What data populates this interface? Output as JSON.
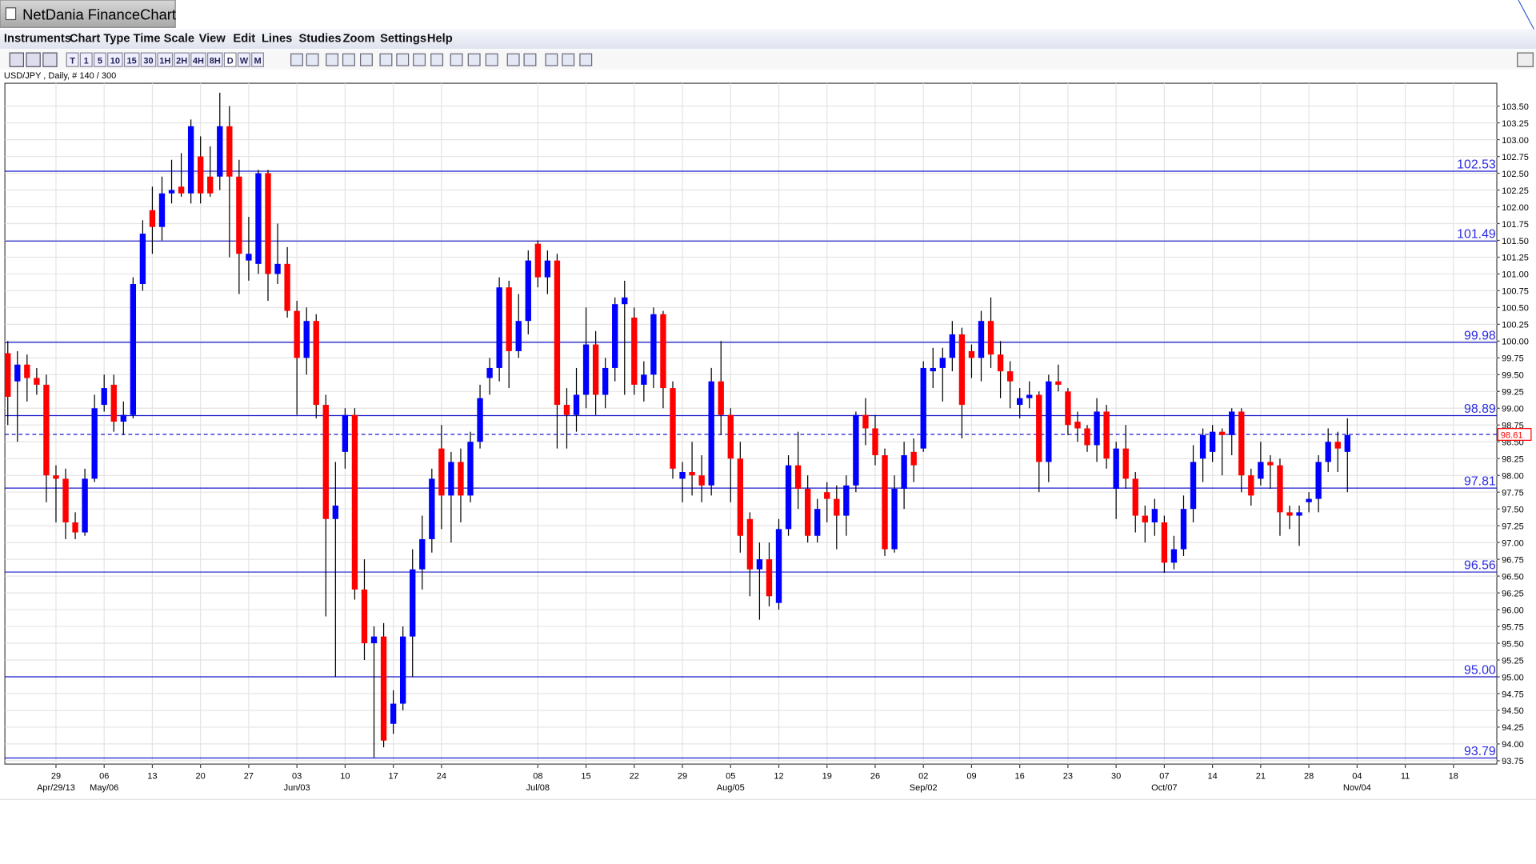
{
  "app": {
    "title": "NetDania FinanceChart",
    "menu": [
      "Instruments",
      "Chart Type",
      "Time Scale",
      "View",
      "Edit",
      "Lines",
      "Studies",
      "Zoom",
      "Settings",
      "Help"
    ],
    "toolbar": [
      "T",
      "1",
      "5",
      "10",
      "15",
      "30",
      "1H",
      "2H",
      "4H",
      "8H",
      "D",
      "W",
      "M"
    ]
  },
  "chart_data": {
    "type": "candlestick",
    "subtitle": "USD/JPY , Daily, # 140 / 300",
    "up_color": "#0000ff",
    "down_color": "#ff0000",
    "grid": true,
    "xlim": [
      -0.3,
      154.5
    ],
    "ylim": [
      93.7,
      103.84
    ],
    "xticks": [
      {
        "value": 5,
        "label": "29"
      },
      {
        "value": 10,
        "label": "06"
      },
      {
        "value": 15,
        "label": "13"
      },
      {
        "value": 20,
        "label": "20"
      },
      {
        "value": 25,
        "label": "27"
      },
      {
        "value": 30,
        "label": "03"
      },
      {
        "value": 35,
        "label": "10"
      },
      {
        "value": 40,
        "label": "17"
      },
      {
        "value": 45,
        "label": "24"
      },
      {
        "value": 55,
        "label": "08"
      },
      {
        "value": 60,
        "label": "15"
      },
      {
        "value": 65,
        "label": "22"
      },
      {
        "value": 70,
        "label": "29"
      },
      {
        "value": 75,
        "label": "05"
      },
      {
        "value": 80,
        "label": "12"
      },
      {
        "value": 85,
        "label": "19"
      },
      {
        "value": 90,
        "label": "26"
      },
      {
        "value": 95,
        "label": "02"
      },
      {
        "value": 100,
        "label": "09"
      },
      {
        "value": 105,
        "label": "16"
      },
      {
        "value": 110,
        "label": "23"
      },
      {
        "value": 115,
        "label": "30"
      },
      {
        "value": 120,
        "label": "07"
      },
      {
        "value": 125,
        "label": "14"
      },
      {
        "value": 130,
        "label": "21"
      },
      {
        "value": 135,
        "label": "28"
      },
      {
        "value": 140,
        "label": "04"
      },
      {
        "value": 145,
        "label": "11"
      },
      {
        "value": 150,
        "label": "18"
      }
    ],
    "xsubticks": [
      {
        "value": 5,
        "label": "Apr/29/13"
      },
      {
        "value": 10,
        "label": "May/06"
      },
      {
        "value": 30,
        "label": "Jun/03"
      },
      {
        "value": 55,
        "label": "Jul/08"
      },
      {
        "value": 75,
        "label": "Aug/05"
      },
      {
        "value": 95,
        "label": "Sep/02"
      },
      {
        "value": 120,
        "label": "Oct/07"
      },
      {
        "value": 140,
        "label": "Nov/04"
      }
    ],
    "yticks": [
      93.75,
      {
        "value": 94,
        "label": "94.00"
      },
      94.25,
      {
        "value": 94.5,
        "label": "94.50"
      },
      94.75,
      {
        "value": 95,
        "label": "95.00"
      },
      95.25,
      {
        "value": 95.5,
        "label": "95.50"
      },
      95.75,
      {
        "value": 96,
        "label": "96.00"
      },
      96.25,
      {
        "value": 96.5,
        "label": "96.50"
      },
      96.75,
      {
        "value": 97,
        "label": "97.00"
      },
      97.25,
      {
        "value": 97.5,
        "label": "97.50"
      },
      97.75,
      {
        "value": 98,
        "label": "98.00"
      },
      98.25,
      {
        "value": 98.5,
        "label": "98.50"
      },
      98.75,
      {
        "value": 99,
        "label": "99.00"
      },
      99.25,
      {
        "value": 99.5,
        "label": "99.50"
      },
      99.75,
      {
        "value": 100,
        "label": "100.00"
      },
      100.25,
      {
        "value": 100.5,
        "label": "100.50"
      },
      100.75,
      {
        "value": 101,
        "label": "101.00"
      },
      101.25,
      {
        "value": 101.5,
        "label": "101.50"
      },
      101.75,
      {
        "value": 102,
        "label": "102.00"
      },
      102.25,
      {
        "value": 102.5,
        "label": "102.50"
      },
      102.75,
      {
        "value": 103,
        "label": "103.00"
      },
      103.25,
      {
        "value": 103.5,
        "label": "103.50"
      }
    ],
    "levels": [
      102.53,
      101.49,
      99.98,
      98.89,
      97.81,
      96.56,
      {
        "value": 95,
        "label": "95.00"
      },
      93.79
    ],
    "last_price": 98.61,
    "open": [
      99.82,
      99.4,
      99.65,
      99.45,
      99.35,
      98.0,
      97.95,
      97.3,
      97.15,
      97.95,
      99.05,
      99.35,
      98.8,
      98.9,
      100.85,
      101.95,
      101.7,
      102.2,
      102.3,
      102.2,
      102.75,
      102.45,
      102.45,
      103.2,
      102.45,
      101.2,
      101.15,
      102.5,
      101.0,
      101.15,
      100.45,
      99.75,
      100.3,
      99.05,
      97.35,
      98.35,
      98.9,
      96.3,
      95.5,
      95.6,
      94.3,
      94.6,
      95.6,
      96.6,
      97.05,
      98.4,
      97.7,
      98.2,
      97.7,
      98.5,
      99.45,
      99.6,
      100.8,
      99.85,
      100.3,
      101.45,
      100.95,
      101.2,
      99.05,
      98.9,
      99.2,
      99.95,
      99.2,
      99.6,
      100.55,
      100.35,
      99.35,
      99.5,
      100.4,
      99.3,
      97.95,
      98.05,
      98.0,
      97.85,
      99.4,
      98.9,
      98.25,
      97.35,
      96.6,
      96.75,
      96.1,
      97.2,
      98.15,
      97.8,
      97.1,
      97.75,
      97.65,
      97.4,
      97.85,
      98.9,
      98.7,
      98.3,
      96.9,
      97.8,
      98.35,
      98.4,
      99.55,
      99.6,
      99.75,
      100.1,
      99.85,
      99.75,
      100.3,
      99.8,
      99.55,
      99.05,
      99.15,
      99.2,
      98.2,
      99.4,
      99.25,
      98.8,
      98.7,
      98.45,
      98.95,
      97.8,
      98.4,
      97.95,
      97.4,
      97.3,
      97.3,
      96.7,
      96.9,
      97.5,
      98.25,
      98.35,
      98.65,
      98.6,
      98.95,
      98.0,
      97.95,
      98.2,
      98.15,
      97.45,
      97.4,
      97.6,
      97.65,
      98.2,
      98.5,
      98.35
    ],
    "high": [
      100.0,
      99.85,
      99.8,
      99.6,
      99.5,
      98.15,
      98.1,
      97.45,
      98.1,
      99.2,
      99.5,
      99.5,
      99.1,
      100.95,
      101.8,
      102.3,
      102.45,
      102.7,
      102.8,
      103.3,
      103.05,
      102.9,
      103.7,
      103.5,
      102.7,
      101.85,
      102.55,
      102.55,
      101.75,
      101.4,
      100.6,
      100.5,
      100.4,
      99.2,
      98.2,
      99.0,
      99.0,
      96.75,
      95.75,
      95.8,
      94.8,
      95.75,
      96.9,
      97.4,
      98.1,
      98.75,
      98.35,
      98.4,
      98.65,
      99.35,
      99.75,
      100.95,
      100.9,
      100.7,
      101.35,
      101.5,
      101.35,
      101.3,
      99.3,
      99.6,
      100.5,
      100.15,
      99.75,
      100.65,
      100.9,
      100.5,
      99.7,
      100.5,
      100.45,
      99.4,
      98.2,
      98.5,
      98.3,
      99.6,
      100.0,
      99.0,
      98.5,
      97.45,
      97.0,
      97.0,
      97.35,
      98.3,
      98.65,
      98.0,
      97.65,
      97.9,
      97.85,
      98.0,
      98.95,
      99.15,
      98.9,
      98.4,
      98.0,
      98.5,
      98.55,
      99.7,
      99.9,
      99.9,
      100.3,
      100.2,
      99.95,
      100.45,
      100.65,
      100.0,
      99.7,
      99.3,
      99.4,
      99.25,
      99.5,
      99.65,
      99.3,
      98.95,
      98.75,
      99.15,
      99.05,
      98.5,
      98.75,
      98.05,
      97.55,
      97.65,
      97.4,
      97.1,
      97.7,
      98.45,
      98.7,
      98.75,
      98.7,
      99.0,
      99.0,
      98.1,
      98.5,
      98.3,
      98.25,
      97.55,
      97.55,
      97.75,
      98.3,
      98.7,
      98.65,
      98.85
    ],
    "low": [
      98.75,
      98.5,
      99.1,
      99.2,
      97.6,
      97.3,
      97.05,
      97.05,
      97.1,
      97.9,
      98.95,
      98.65,
      98.6,
      98.85,
      100.75,
      101.3,
      101.5,
      102.05,
      102.15,
      102.05,
      102.05,
      102.15,
      102.25,
      101.25,
      100.7,
      100.9,
      101.0,
      100.6,
      100.85,
      100.35,
      98.9,
      99.5,
      98.85,
      95.9,
      95.0,
      98.1,
      96.15,
      95.25,
      93.8,
      93.95,
      94.15,
      94.5,
      95.0,
      96.3,
      96.85,
      97.2,
      97.0,
      97.3,
      97.6,
      98.4,
      99.2,
      99.4,
      99.3,
      99.75,
      100.1,
      100.8,
      100.7,
      98.4,
      98.4,
      98.65,
      99.0,
      98.9,
      99.0,
      99.4,
      99.2,
      99.2,
      99.1,
      99.3,
      99.0,
      97.95,
      97.6,
      97.7,
      97.6,
      97.7,
      98.6,
      97.6,
      96.85,
      96.2,
      95.85,
      96.05,
      96.0,
      97.1,
      97.5,
      97.0,
      97.0,
      97.3,
      96.9,
      97.1,
      97.75,
      98.45,
      98.15,
      96.8,
      96.85,
      97.5,
      97.9,
      98.35,
      99.3,
      99.1,
      99.55,
      98.55,
      99.45,
      99.4,
      99.6,
      99.15,
      99.0,
      98.85,
      99.0,
      97.75,
      97.9,
      99.25,
      98.6,
      98.5,
      98.35,
      98.2,
      98.1,
      97.35,
      97.8,
      97.15,
      97.0,
      97.1,
      96.55,
      96.6,
      96.8,
      97.3,
      97.9,
      98.2,
      98.0,
      98.3,
      97.75,
      97.55,
      97.85,
      97.8,
      97.1,
      97.2,
      96.95,
      97.45,
      97.45,
      98.05,
      98.05,
      97.75
    ],
    "close": [
      99.17,
      99.65,
      99.45,
      99.35,
      98.0,
      97.95,
      97.3,
      97.15,
      97.95,
      99.0,
      99.3,
      98.8,
      98.9,
      100.85,
      101.6,
      101.7,
      102.2,
      102.25,
      102.2,
      103.2,
      102.2,
      102.2,
      103.2,
      102.45,
      101.3,
      101.3,
      102.5,
      101.0,
      101.15,
      100.45,
      99.75,
      100.3,
      99.05,
      97.35,
      97.55,
      98.9,
      96.3,
      95.5,
      95.6,
      94.05,
      94.6,
      95.6,
      96.6,
      97.05,
      97.95,
      97.7,
      98.2,
      97.7,
      98.5,
      99.15,
      99.6,
      100.8,
      99.85,
      100.3,
      101.2,
      100.95,
      101.2,
      99.05,
      98.9,
      99.2,
      99.95,
      99.2,
      99.6,
      100.55,
      100.65,
      99.35,
      99.5,
      100.4,
      99.3,
      98.1,
      98.05,
      98.0,
      97.85,
      99.4,
      98.9,
      98.25,
      97.1,
      96.6,
      96.75,
      96.2,
      97.2,
      98.15,
      97.8,
      97.1,
      97.5,
      97.65,
      97.4,
      97.85,
      98.9,
      98.7,
      98.3,
      96.9,
      97.8,
      98.3,
      98.15,
      99.6,
      99.6,
      99.75,
      100.1,
      99.05,
      99.75,
      100.3,
      99.8,
      99.55,
      99.4,
      99.15,
      99.2,
      98.2,
      99.4,
      99.35,
      98.75,
      98.7,
      98.45,
      98.95,
      98.25,
      98.4,
      97.95,
      97.4,
      97.3,
      97.5,
      96.7,
      96.9,
      97.5,
      98.2,
      98.6,
      98.65,
      98.6,
      98.95,
      98.0,
      97.7,
      98.2,
      98.15,
      97.45,
      97.4,
      97.45,
      97.65,
      98.2,
      98.5,
      98.4,
      98.6
    ]
  }
}
